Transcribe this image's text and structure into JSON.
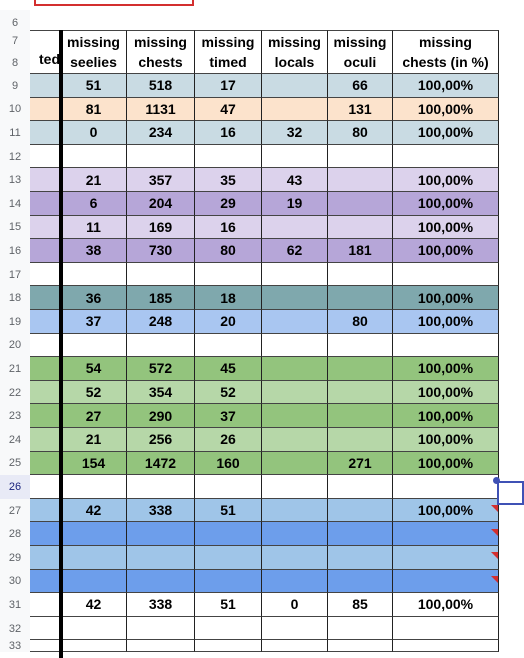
{
  "headers": {
    "col_a": "ted",
    "cols": [
      [
        "missing",
        "seelies"
      ],
      [
        "missing",
        "chests"
      ],
      [
        "missing",
        "timed"
      ],
      [
        "missing",
        "locals"
      ],
      [
        "missing",
        "oculi"
      ],
      [
        "missing",
        "chests (in %)"
      ]
    ]
  },
  "rows": [
    {
      "num": "9",
      "color": "#c9dbe3",
      "cells": [
        "51",
        "518",
        "17",
        "",
        "66",
        "100,00%"
      ]
    },
    {
      "num": "10",
      "color": "#fce3cc",
      "cells": [
        "81",
        "1131",
        "47",
        "",
        "131",
        "100,00%"
      ]
    },
    {
      "num": "11",
      "color": "#c9dbe3",
      "cells": [
        "0",
        "234",
        "16",
        "32",
        "80",
        "100,00%"
      ]
    },
    {
      "num": "12",
      "color": "#ffffff",
      "cells": [
        "",
        "",
        "",
        "",
        "",
        ""
      ]
    },
    {
      "num": "13",
      "color": "#dcd2ec",
      "cells": [
        "21",
        "357",
        "35",
        "43",
        "",
        "100,00%"
      ]
    },
    {
      "num": "14",
      "color": "#b6a6d8",
      "cells": [
        "6",
        "204",
        "29",
        "19",
        "",
        "100,00%"
      ]
    },
    {
      "num": "15",
      "color": "#dcd2ec",
      "cells": [
        "11",
        "169",
        "16",
        "",
        "",
        "100,00%"
      ]
    },
    {
      "num": "16",
      "color": "#b6a6d8",
      "cells": [
        "38",
        "730",
        "80",
        "62",
        "181",
        "100,00%"
      ]
    },
    {
      "num": "17",
      "color": "#ffffff",
      "cells": [
        "",
        "",
        "",
        "",
        "",
        ""
      ]
    },
    {
      "num": "18",
      "color": "#7fa8ad",
      "cells": [
        "36",
        "185",
        "18",
        "",
        "",
        "100,00%"
      ]
    },
    {
      "num": "19",
      "color": "#a9c6f1",
      "cells": [
        "37",
        "248",
        "20",
        "",
        "80",
        "100,00%"
      ]
    },
    {
      "num": "20",
      "color": "#ffffff",
      "cells": [
        "",
        "",
        "",
        "",
        "",
        ""
      ]
    },
    {
      "num": "21",
      "color": "#93c47d",
      "cells": [
        "54",
        "572",
        "45",
        "",
        "",
        "100,00%"
      ]
    },
    {
      "num": "22",
      "color": "#b6d7a8",
      "cells": [
        "52",
        "354",
        "52",
        "",
        "",
        "100,00%"
      ]
    },
    {
      "num": "23",
      "color": "#93c47d",
      "cells": [
        "27",
        "290",
        "37",
        "",
        "",
        "100,00%"
      ]
    },
    {
      "num": "24",
      "color": "#b6d7a8",
      "cells": [
        "21",
        "256",
        "26",
        "",
        "",
        "100,00%"
      ]
    },
    {
      "num": "25",
      "color": "#93c47d",
      "cells": [
        "154",
        "1472",
        "160",
        "",
        "271",
        "100,00%"
      ]
    },
    {
      "num": "26",
      "color": "#ffffff",
      "cells": [
        "",
        "",
        "",
        "",
        "",
        ""
      ],
      "selected": true
    },
    {
      "num": "27",
      "color": "#9fc5e8",
      "cells": [
        "42",
        "338",
        "51",
        "",
        "",
        "100,00%"
      ]
    },
    {
      "num": "28",
      "color": "#6d9eeb",
      "cells": [
        "",
        "",
        "",
        "",
        "",
        ""
      ]
    },
    {
      "num": "29",
      "color": "#9fc5e8",
      "cells": [
        "",
        "",
        "",
        "",
        "",
        ""
      ]
    },
    {
      "num": "30",
      "color": "#6d9eeb",
      "cells": [
        "",
        "",
        "",
        "",
        "",
        ""
      ]
    },
    {
      "num": "31",
      "color": "#ffffff",
      "cells": [
        "42",
        "338",
        "51",
        "0",
        "85",
        "100,00%"
      ]
    },
    {
      "num": "32",
      "color": "#ffffff",
      "cells": [
        "",
        "",
        "",
        "",
        "",
        ""
      ]
    },
    {
      "num": "33",
      "color": "#ffffff",
      "cells": [
        "",
        "",
        "",
        "",
        "",
        ""
      ]
    }
  ],
  "header_row_nums": [
    "6",
    "7",
    "8"
  ]
}
